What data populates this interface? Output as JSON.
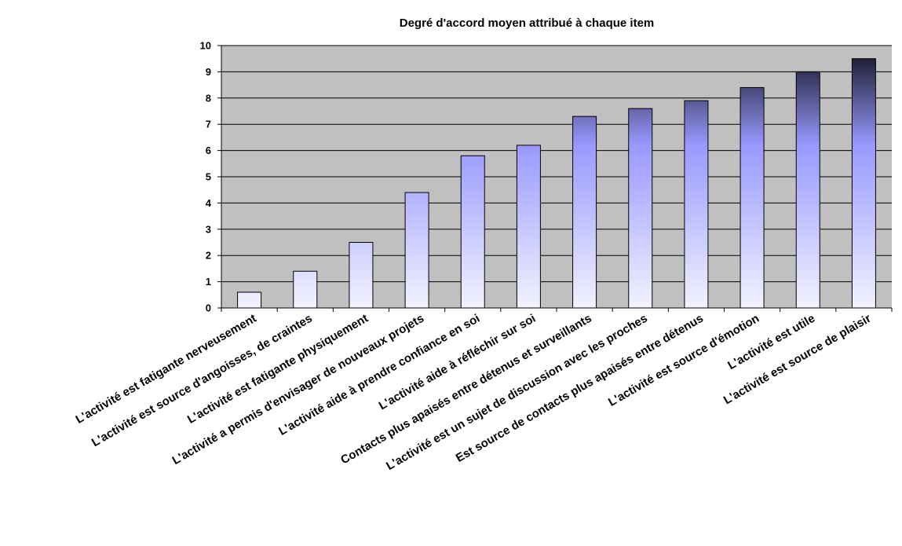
{
  "chart_data": {
    "type": "bar",
    "title": "Degré d'accord moyen attribué à chaque item",
    "xlabel": "",
    "ylabel": "",
    "ylim": [
      0,
      10
    ],
    "yticks": [
      0,
      1,
      2,
      3,
      4,
      5,
      6,
      7,
      8,
      9,
      10
    ],
    "grid": true,
    "legend": "none",
    "categories": [
      "L'activité est fatigante nerveusement",
      "L'activité est source d'angoisses, de craintes",
      "L'activité est fatigante physiquement",
      "L'activité a permis d'envisager de nouveaux projets",
      "L'activité aide à prendre confiance en soi",
      "L'activité aide à réfléchir sur soi",
      "Contacts plus apaisés entre détenus et surveillants",
      "L'activité est un sujet de discussion avec les proches",
      "Est source de contacts plus apaisés entre détenus",
      "L'activité est source d'émotion",
      "L'activité est utile",
      "L'activité est source de plaisir"
    ],
    "values": [
      0.6,
      1.4,
      2.5,
      4.4,
      5.8,
      6.2,
      7.3,
      7.6,
      7.9,
      8.4,
      9.0,
      9.5
    ],
    "colors": {
      "plot_background": "#c0c0c0",
      "gridline": "#000000",
      "bar_outline": "#000000",
      "bar_light": "#f2f2ff",
      "bar_mid": "#9999ff",
      "bar_dark": "#0d0d1a"
    }
  }
}
